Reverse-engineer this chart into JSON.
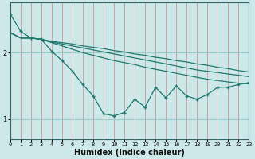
{
  "xlabel": "Humidex (Indice chaleur)",
  "ylabel": "",
  "bg_color": "#cce8e8",
  "line_color": "#1e7a6e",
  "grid_color_v": "#cc9999",
  "grid_color_h": "#99cccc",
  "x": [
    0,
    1,
    2,
    3,
    4,
    5,
    6,
    7,
    8,
    9,
    10,
    11,
    12,
    13,
    14,
    15,
    16,
    17,
    18,
    19,
    20,
    21,
    22,
    23
  ],
  "line1": [
    2.58,
    2.32,
    2.22,
    2.2,
    2.02,
    1.88,
    1.72,
    1.52,
    1.35,
    1.08,
    1.05,
    1.1,
    1.3,
    1.18,
    1.48,
    1.32,
    1.5,
    1.35,
    1.3,
    1.37,
    1.48,
    1.48,
    1.52,
    1.55
  ],
  "line2": [
    2.3,
    2.22,
    2.22,
    2.2,
    2.15,
    2.1,
    2.05,
    2.0,
    1.96,
    1.92,
    1.88,
    1.85,
    1.82,
    1.78,
    1.75,
    1.72,
    1.69,
    1.66,
    1.63,
    1.6,
    1.58,
    1.56,
    1.54,
    1.53
  ],
  "line3": [
    2.3,
    2.22,
    2.22,
    2.2,
    2.16,
    2.13,
    2.1,
    2.07,
    2.04,
    2.01,
    1.98,
    1.95,
    1.92,
    1.89,
    1.86,
    1.83,
    1.8,
    1.77,
    1.74,
    1.72,
    1.7,
    1.68,
    1.66,
    1.64
  ],
  "line4": [
    2.3,
    2.22,
    2.22,
    2.2,
    2.17,
    2.15,
    2.13,
    2.1,
    2.08,
    2.06,
    2.03,
    2.01,
    1.98,
    1.96,
    1.93,
    1.91,
    1.88,
    1.86,
    1.83,
    1.81,
    1.78,
    1.76,
    1.73,
    1.71
  ],
  "yticks": [
    1,
    2
  ],
  "xlim": [
    0,
    23
  ],
  "ylim": [
    0.7,
    2.75
  ]
}
